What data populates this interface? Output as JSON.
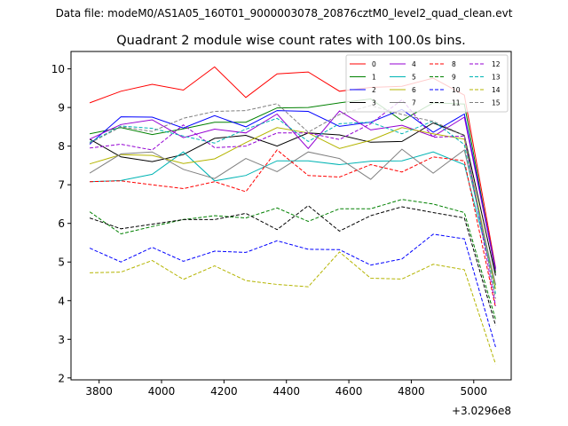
{
  "suptitle": "Data file: modeM0/AS1A05_160T01_9000003078_20876cztM0_level2_quad_clean.evt",
  "chart_data": {
    "type": "line",
    "title": "Quadrant 2 module wise count rates with 100.0s bins.",
    "xlabel": "",
    "ylabel": "",
    "x_offset_label": "+3.0296e8",
    "xlim": [
      3710,
      5120
    ],
    "ylim": [
      1.95,
      10.45
    ],
    "x_ticks": [
      3800,
      4000,
      4200,
      4400,
      4600,
      4800,
      5000
    ],
    "y_ticks": [
      2,
      3,
      4,
      5,
      6,
      7,
      8,
      9,
      10
    ],
    "x": [
      3770,
      3870,
      3970,
      4070,
      4170,
      4270,
      4370,
      4470,
      4570,
      4670,
      4770,
      4870,
      4970,
      5070
    ],
    "grid": false,
    "legend": {
      "location": "top-right",
      "columns": 4
    },
    "series": [
      {
        "name": "0",
        "color": "#ff0000",
        "dash": "solid",
        "values": [
          9.12,
          9.42,
          9.6,
          9.45,
          10.05,
          9.26,
          9.87,
          9.92,
          9.42,
          9.52,
          9.55,
          9.76,
          9.32,
          4.85
        ]
      },
      {
        "name": "1",
        "color": "#008000",
        "dash": "solid",
        "values": [
          8.32,
          8.48,
          8.3,
          8.45,
          8.62,
          8.62,
          8.99,
          9.0,
          9.12,
          9.22,
          8.66,
          9.12,
          9.09,
          4.72
        ]
      },
      {
        "name": "2",
        "color": "#0000ff",
        "dash": "solid",
        "values": [
          8.05,
          8.76,
          8.75,
          8.47,
          8.79,
          8.5,
          8.92,
          8.9,
          8.51,
          8.62,
          8.95,
          8.36,
          8.83,
          4.82
        ]
      },
      {
        "name": "3",
        "color": "#000000",
        "dash": "solid",
        "values": [
          8.18,
          7.72,
          7.6,
          7.78,
          8.2,
          8.28,
          8.0,
          8.34,
          8.29,
          8.1,
          8.12,
          8.6,
          8.28,
          4.65
        ]
      },
      {
        "name": "4",
        "color": "#9400d3",
        "dash": "solid",
        "values": [
          8.18,
          8.56,
          8.68,
          8.22,
          8.44,
          8.34,
          8.83,
          7.94,
          8.91,
          8.42,
          8.54,
          8.25,
          8.75,
          4.78
        ]
      },
      {
        "name": "5",
        "color": "#00b4b4",
        "dash": "solid",
        "values": [
          7.08,
          7.11,
          7.27,
          7.85,
          7.1,
          7.24,
          7.62,
          7.62,
          7.52,
          7.61,
          7.62,
          7.85,
          7.52,
          4.4
        ]
      },
      {
        "name": "6",
        "color": "#b4b400",
        "dash": "solid",
        "values": [
          7.54,
          7.78,
          7.76,
          7.55,
          7.67,
          8.09,
          8.48,
          8.34,
          7.94,
          8.15,
          8.48,
          8.32,
          8.18,
          4.3
        ]
      },
      {
        "name": "7",
        "color": "#808080",
        "dash": "solid",
        "values": [
          7.3,
          7.8,
          7.85,
          7.4,
          7.16,
          7.68,
          7.34,
          7.85,
          7.68,
          7.14,
          7.92,
          7.3,
          7.9,
          4.42
        ]
      },
      {
        "name": "8",
        "color": "#ff0000",
        "dash": "dashed",
        "values": [
          7.08,
          7.1,
          7.0,
          6.9,
          7.08,
          6.82,
          7.9,
          7.24,
          7.2,
          7.52,
          7.33,
          7.72,
          7.62,
          3.82
        ]
      },
      {
        "name": "9",
        "color": "#008000",
        "dash": "dashed",
        "values": [
          6.3,
          5.73,
          5.92,
          6.1,
          6.2,
          6.14,
          6.4,
          6.05,
          6.38,
          6.38,
          6.62,
          6.5,
          6.28,
          3.52
        ]
      },
      {
        "name": "10",
        "color": "#0000ff",
        "dash": "dashed",
        "values": [
          5.36,
          5.0,
          5.38,
          5.02,
          5.28,
          5.25,
          5.55,
          5.33,
          5.32,
          4.92,
          5.08,
          5.72,
          5.6,
          2.8
        ]
      },
      {
        "name": "11",
        "color": "#000000",
        "dash": "dashed",
        "values": [
          6.14,
          5.86,
          5.98,
          6.1,
          6.1,
          6.26,
          5.84,
          6.46,
          5.8,
          6.2,
          6.43,
          6.28,
          6.14,
          3.36
        ]
      },
      {
        "name": "12",
        "color": "#9400d3",
        "dash": "dashed",
        "values": [
          7.95,
          8.05,
          7.9,
          8.55,
          7.96,
          8.0,
          8.34,
          8.34,
          8.17,
          8.58,
          9.2,
          8.23,
          8.26,
          3.86
        ]
      },
      {
        "name": "13",
        "color": "#00b4b4",
        "dash": "dashed",
        "values": [
          8.1,
          8.52,
          8.46,
          8.26,
          8.08,
          8.44,
          8.72,
          8.12,
          8.58,
          8.62,
          8.32,
          8.65,
          8.04,
          4.18
        ]
      },
      {
        "name": "14",
        "color": "#b4b400",
        "dash": "dashed",
        "values": [
          4.72,
          4.74,
          5.04,
          4.55,
          4.9,
          4.52,
          4.42,
          4.36,
          5.26,
          4.58,
          4.56,
          4.94,
          4.8,
          2.36
        ]
      },
      {
        "name": "15",
        "color": "#808080",
        "dash": "dashed",
        "values": [
          8.08,
          8.5,
          8.38,
          8.72,
          8.9,
          8.92,
          9.1,
          8.36,
          8.82,
          9.05,
          8.82,
          8.64,
          8.28,
          4.05
        ]
      }
    ]
  }
}
